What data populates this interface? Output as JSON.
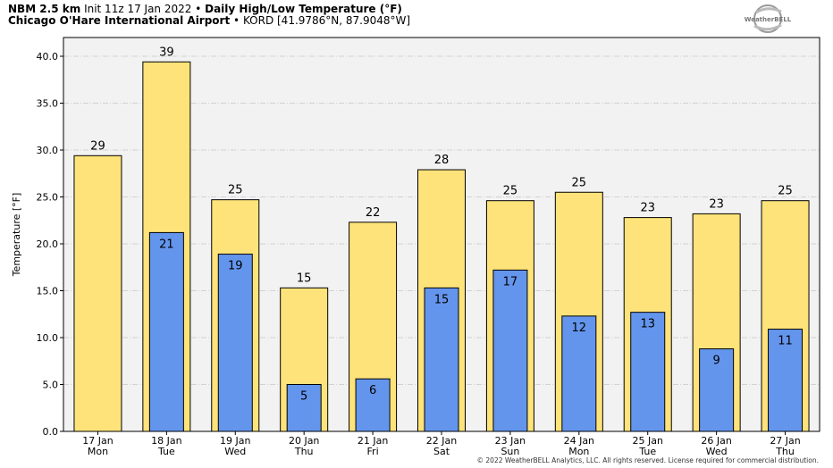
{
  "header": {
    "model": "NBM 2.5 km",
    "init": "Init 11z 17 Jan 2022",
    "bullet": "•",
    "product": "Daily High/Low Temperature (°F)",
    "station": "Chicago O'Hare International Airport",
    "station_code": "KORD [41.9786°N, 87.9048°W]"
  },
  "logo": {
    "text": "WeatherBELL"
  },
  "footer": {
    "copyright": "© 2022 WeatherBELL Analytics, LLC. All rights reserved. License required for commercial distribution."
  },
  "colors": {
    "high": "#fde37a",
    "low": "#6495ed",
    "plot_bg": "#f2f2f2"
  },
  "chart_data": {
    "type": "bar",
    "ylabel": "Temperature [°F]",
    "ylim": [
      0,
      42
    ],
    "yticks": [
      0.0,
      5.0,
      10.0,
      15.0,
      20.0,
      25.0,
      30.0,
      35.0,
      40.0
    ],
    "ytick_labels": [
      "0.0",
      "5.0",
      "10.0",
      "15.0",
      "20.0",
      "25.0",
      "30.0",
      "35.0",
      "40.0"
    ],
    "grid": true,
    "categories": [
      {
        "date": "17 Jan",
        "day": "Mon"
      },
      {
        "date": "18 Jan",
        "day": "Tue"
      },
      {
        "date": "19 Jan",
        "day": "Wed"
      },
      {
        "date": "20 Jan",
        "day": "Thu"
      },
      {
        "date": "21 Jan",
        "day": "Fri"
      },
      {
        "date": "22 Jan",
        "day": "Sat"
      },
      {
        "date": "23 Jan",
        "day": "Sun"
      },
      {
        "date": "24 Jan",
        "day": "Mon"
      },
      {
        "date": "25 Jan",
        "day": "Tue"
      },
      {
        "date": "26 Jan",
        "day": "Wed"
      },
      {
        "date": "27 Jan",
        "day": "Thu"
      }
    ],
    "series": [
      {
        "values": [
          29.4,
          39.4,
          24.7,
          15.3,
          22.3,
          27.9,
          24.6,
          25.5,
          22.8,
          23.2,
          24.6
        ],
        "labels": [
          "29",
          "39",
          "25",
          "15",
          "22",
          "28",
          "25",
          "25",
          "23",
          "23",
          "25"
        ]
      },
      {
        "values": [
          null,
          21.2,
          18.9,
          5.0,
          5.6,
          15.3,
          17.2,
          12.3,
          12.7,
          8.8,
          10.9
        ],
        "labels": [
          null,
          "21",
          "19",
          "5",
          "6",
          "15",
          "17",
          "12",
          "13",
          "9",
          "11"
        ]
      }
    ]
  }
}
